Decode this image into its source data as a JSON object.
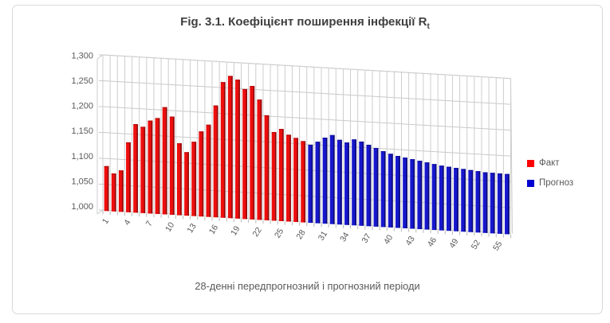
{
  "title": {
    "text": "Fig. 3.1. Коефіцієнт поширення інфекції R",
    "subscript": "t"
  },
  "axis": {
    "x_title": "28-денні передпрогнозний  і прогнозний періоди"
  },
  "legend": {
    "items": [
      {
        "label": "Факт",
        "color": "#ff0000"
      },
      {
        "label": "Прогноз",
        "color": "#0000d0"
      }
    ]
  },
  "chart_data": {
    "type": "bar",
    "style": "3d-column",
    "title": "Fig. 3.1. Коефіцієнт поширення інфекції Rt",
    "xlabel": "28-денні передпрогнозний  і прогнозний періоди",
    "ylabel": "",
    "ylim": [
      1000,
      1300
    ],
    "ytick_step": 50,
    "yticks": [
      1000,
      1050,
      1100,
      1150,
      1200,
      1250,
      1300
    ],
    "ytick_labels": [
      "1,000",
      "1,050",
      "1,100",
      "1,150",
      "1,200",
      "1,250",
      "1,300"
    ],
    "xticks": [
      1,
      4,
      7,
      10,
      13,
      16,
      19,
      22,
      25,
      28,
      31,
      34,
      37,
      40,
      43,
      46,
      49,
      52,
      55
    ],
    "grid": true,
    "legend_position": "right",
    "categories_range": [
      1,
      56
    ],
    "series": [
      {
        "name": "Факт",
        "color": "#ff0000",
        "start_index": 1,
        "values": [
          1082,
          1068,
          1074,
          1128,
          1163,
          1158,
          1170,
          1175,
          1196,
          1178,
          1127,
          1110,
          1130,
          1150,
          1163,
          1200,
          1245,
          1257,
          1250,
          1232,
          1238,
          1212,
          1182,
          1150,
          1156,
          1145,
          1139,
          1133
        ]
      },
      {
        "name": "Прогноз",
        "color": "#0000d0",
        "start_index": 29,
        "values": [
          1126,
          1132,
          1140,
          1145,
          1136,
          1131,
          1137,
          1133,
          1127,
          1121,
          1115,
          1110,
          1106,
          1103,
          1100,
          1097,
          1094,
          1091,
          1088,
          1086,
          1084,
          1082,
          1080,
          1078,
          1076,
          1075,
          1074,
          1073
        ]
      }
    ]
  },
  "palette": {
    "bar_red": "#ed0e0e",
    "bar_red_shade": "#8e0a0a",
    "bar_red_top": "#b40c0c",
    "bar_blue": "#1717ce",
    "bar_blue_shade": "#0a0a70",
    "bar_blue_top": "#10109e",
    "gridline": "#c9c9c9",
    "axis_text": "#595959"
  }
}
